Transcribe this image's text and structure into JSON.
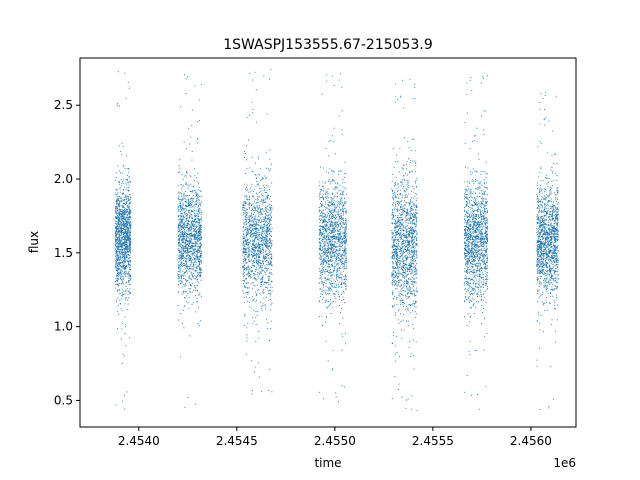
{
  "chart_data": {
    "type": "scatter",
    "title": "1SWASPJ153555.67-215053.9",
    "xlabel": "time",
    "ylabel": "flux",
    "x_offset_label": "1e6",
    "xlim": [
      2453700,
      2456230
    ],
    "ylim": [
      0.32,
      2.82
    ],
    "x_ticks": [
      {
        "value": 2454000,
        "label": "2.4540"
      },
      {
        "value": 2454500,
        "label": "2.4545"
      },
      {
        "value": 2455000,
        "label": "2.4550"
      },
      {
        "value": 2455500,
        "label": "2.4555"
      },
      {
        "value": 2456000,
        "label": "2.4560"
      }
    ],
    "y_ticks": [
      {
        "value": 0.5,
        "label": "0.5"
      },
      {
        "value": 1.0,
        "label": "1.0"
      },
      {
        "value": 1.5,
        "label": "1.5"
      },
      {
        "value": 2.0,
        "label": "2.0"
      },
      {
        "value": 2.5,
        "label": "2.5"
      }
    ],
    "grid": false,
    "point_color": "#1f77b4",
    "seasons": [
      {
        "x_start": 2453880,
        "x_end": 2453960,
        "median": 1.6,
        "spread": 0.17,
        "y_min": 0.43,
        "y_max": 2.75
      },
      {
        "x_start": 2454200,
        "x_end": 2454320,
        "median": 1.6,
        "spread": 0.17,
        "y_min": 0.45,
        "y_max": 2.72
      },
      {
        "x_start": 2454530,
        "x_end": 2454680,
        "median": 1.58,
        "spread": 0.19,
        "y_min": 0.52,
        "y_max": 2.75
      },
      {
        "x_start": 2454920,
        "x_end": 2455060,
        "median": 1.58,
        "spread": 0.19,
        "y_min": 0.45,
        "y_max": 2.72
      },
      {
        "x_start": 2455290,
        "x_end": 2455420,
        "median": 1.55,
        "spread": 0.22,
        "y_min": 0.43,
        "y_max": 2.68
      },
      {
        "x_start": 2455660,
        "x_end": 2455780,
        "median": 1.58,
        "spread": 0.19,
        "y_min": 0.44,
        "y_max": 2.7
      },
      {
        "x_start": 2456030,
        "x_end": 2456140,
        "median": 1.58,
        "spread": 0.18,
        "y_min": 0.43,
        "y_max": 2.6
      }
    ]
  }
}
